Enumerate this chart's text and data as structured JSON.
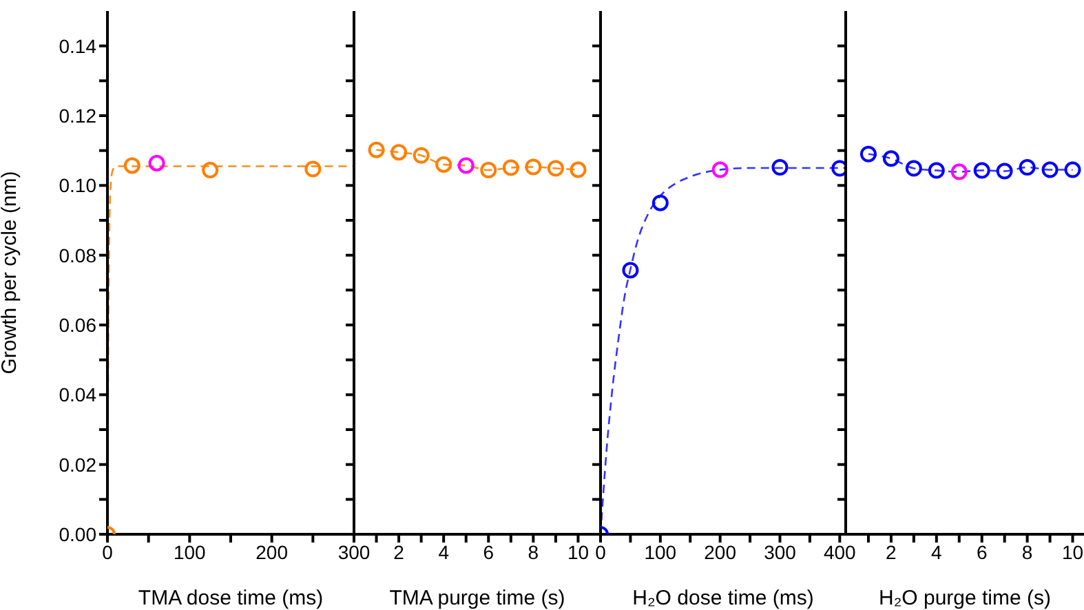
{
  "chart_data": [
    {
      "type": "scatter",
      "xlabel": "TMA dose time (ms)",
      "ylabel": "Growth per cycle (nm)",
      "xlim": [
        0,
        300
      ],
      "xticks": [
        0,
        {
          "value": 50,
          "label": null
        },
        100,
        {
          "value": 150,
          "label": null
        },
        200,
        {
          "value": 250,
          "label": null
        },
        300
      ],
      "ylim": [
        0,
        0.15
      ],
      "yticks": [
        {
          "value": 0,
          "label": "0.00"
        },
        {
          "value": 0.01,
          "label": null
        },
        {
          "value": 0.02,
          "label": "0.02"
        },
        {
          "value": 0.03,
          "label": null
        },
        {
          "value": 0.04,
          "label": "0.04"
        },
        {
          "value": 0.05,
          "label": null
        },
        {
          "value": 0.06,
          "label": "0.06"
        },
        {
          "value": 0.07,
          "label": null
        },
        {
          "value": 0.08,
          "label": "0.08"
        },
        {
          "value": 0.09,
          "label": null
        },
        {
          "value": 0.1,
          "label": "0.10"
        },
        {
          "value": 0.11,
          "label": null
        },
        {
          "value": 0.12,
          "label": "0.12"
        },
        {
          "value": 0.13,
          "label": null
        },
        {
          "value": 0.14,
          "label": "0.14"
        }
      ],
      "grid": false,
      "series": [
        {
          "type": "line",
          "color": "#ff8c1a",
          "line_style": "dashed",
          "marker": "none",
          "x": [
            0,
            1,
            2,
            3,
            4,
            6,
            10,
            300
          ],
          "values": [
            0,
            0.05,
            0.08,
            0.095,
            0.1,
            0.104,
            0.1055,
            0.1055
          ]
        },
        {
          "type": "scatter",
          "color": "#ff7f00",
          "marker": "circle",
          "x": [
            0,
            30,
            60,
            125,
            250
          ],
          "values": [
            0,
            0.1057,
            0.1064,
            0.1044,
            0.1047
          ],
          "colors": [
            "#ff7f00",
            "#ff7f00",
            "#ff00ff",
            "#ff7f00",
            "#ff7f00"
          ]
        }
      ]
    },
    {
      "type": "scatter",
      "xlabel": "TMA purge time (s)",
      "xlim": [
        0,
        11
      ],
      "xticks": [
        {
          "value": 1,
          "label": null
        },
        2,
        {
          "value": 3,
          "label": null
        },
        4,
        {
          "value": 5,
          "label": null
        },
        6,
        {
          "value": 7,
          "label": null
        },
        8,
        {
          "value": 9,
          "label": null
        },
        10
      ],
      "ylim": [
        0,
        0.15
      ],
      "yticks": [
        {
          "value": 0,
          "label": null
        },
        {
          "value": 0.01,
          "label": null
        },
        {
          "value": 0.02,
          "label": null
        },
        {
          "value": 0.03,
          "label": null
        },
        {
          "value": 0.04,
          "label": null
        },
        {
          "value": 0.05,
          "label": null
        },
        {
          "value": 0.06,
          "label": null
        },
        {
          "value": 0.07,
          "label": null
        },
        {
          "value": 0.08,
          "label": null
        },
        {
          "value": 0.09,
          "label": null
        },
        {
          "value": 0.1,
          "label": null
        },
        {
          "value": 0.11,
          "label": null
        },
        {
          "value": 0.12,
          "label": null
        },
        {
          "value": 0.13,
          "label": null
        },
        {
          "value": 0.14,
          "label": null
        }
      ],
      "tick_labels": "x",
      "grid": false,
      "series": [
        {
          "type": "line",
          "color": "#ff8c1a",
          "line_style": "dashed",
          "marker": "none",
          "x": [
            1,
            2,
            3,
            4,
            5,
            6,
            7,
            8,
            9,
            10
          ],
          "values": [
            0.1102,
            0.1095,
            0.1086,
            0.106,
            0.1057,
            0.1044,
            0.1051,
            0.1053,
            0.1049,
            0.1045
          ]
        },
        {
          "type": "scatter",
          "color": "#ff7f00",
          "marker": "circle",
          "x": [
            1,
            2,
            3,
            4,
            5,
            6,
            7,
            8,
            9,
            10
          ],
          "values": [
            0.1102,
            0.1095,
            0.1086,
            0.106,
            0.1057,
            0.1044,
            0.1051,
            0.1053,
            0.1049,
            0.1045
          ],
          "colors": [
            "#ff7f00",
            "#ff7f00",
            "#ff7f00",
            "#ff7f00",
            "#ff00ff",
            "#ff7f00",
            "#ff7f00",
            "#ff7f00",
            "#ff7f00",
            "#ff7f00"
          ]
        }
      ]
    },
    {
      "type": "scatter",
      "xlabel": "H₂O dose time (ms)",
      "xlim": [
        0,
        410
      ],
      "xticks": [
        0,
        {
          "value": 50,
          "label": null
        },
        100,
        {
          "value": 150,
          "label": null
        },
        200,
        {
          "value": 250,
          "label": null
        },
        300,
        {
          "value": 350,
          "label": null
        },
        400
      ],
      "ylim": [
        0,
        0.15
      ],
      "yticks": [
        {
          "value": 0,
          "label": null
        },
        {
          "value": 0.01,
          "label": null
        },
        {
          "value": 0.02,
          "label": null
        },
        {
          "value": 0.03,
          "label": null
        },
        {
          "value": 0.04,
          "label": null
        },
        {
          "value": 0.05,
          "label": null
        },
        {
          "value": 0.06,
          "label": null
        },
        {
          "value": 0.07,
          "label": null
        },
        {
          "value": 0.08,
          "label": null
        },
        {
          "value": 0.09,
          "label": null
        },
        {
          "value": 0.1,
          "label": null
        },
        {
          "value": 0.11,
          "label": null
        },
        {
          "value": 0.12,
          "label": null
        },
        {
          "value": 0.13,
          "label": null
        },
        {
          "value": 0.14,
          "label": null
        }
      ],
      "tick_labels": "x",
      "grid": false,
      "series": [
        {
          "type": "line",
          "color": "#3333ff",
          "line_style": "dashed",
          "marker": "none",
          "x": [
            0,
            10,
            20,
            30,
            40,
            50,
            60,
            80,
            100,
            125,
            150,
            200,
            250,
            300,
            410
          ],
          "values": [
            0,
            0.024,
            0.042,
            0.056,
            0.068,
            0.076,
            0.083,
            0.092,
            0.097,
            0.1005,
            0.1025,
            0.1045,
            0.105,
            0.105,
            0.105
          ]
        },
        {
          "type": "scatter",
          "color": "#0000ff",
          "marker": "circle",
          "x": [
            0,
            50,
            100,
            200,
            300,
            400
          ],
          "values": [
            0,
            0.0757,
            0.095,
            0.1045,
            0.1052,
            0.1049
          ],
          "colors": [
            "#0000ff",
            "#0000ff",
            "#0000ff",
            "#ff00ff",
            "#0000ff",
            "#0000ff"
          ]
        }
      ]
    },
    {
      "type": "scatter",
      "xlabel": "H₂O purge time (s)",
      "xlim": [
        0,
        10.5
      ],
      "xticks": [
        {
          "value": 1,
          "label": null
        },
        2,
        {
          "value": 3,
          "label": null
        },
        4,
        {
          "value": 5,
          "label": null
        },
        6,
        {
          "value": 7,
          "label": null
        },
        8,
        {
          "value": 9,
          "label": null
        },
        10
      ],
      "ylim": [
        0,
        0.15
      ],
      "yticks": [
        {
          "value": 0,
          "label": null
        },
        {
          "value": 0.01,
          "label": null
        },
        {
          "value": 0.02,
          "label": null
        },
        {
          "value": 0.03,
          "label": null
        },
        {
          "value": 0.04,
          "label": null
        },
        {
          "value": 0.05,
          "label": null
        },
        {
          "value": 0.06,
          "label": null
        },
        {
          "value": 0.07,
          "label": null
        },
        {
          "value": 0.08,
          "label": null
        },
        {
          "value": 0.09,
          "label": null
        },
        {
          "value": 0.1,
          "label": null
        },
        {
          "value": 0.11,
          "label": null
        },
        {
          "value": 0.12,
          "label": null
        },
        {
          "value": 0.13,
          "label": null
        },
        {
          "value": 0.14,
          "label": null
        }
      ],
      "tick_labels": "x",
      "grid": false,
      "series": [
        {
          "type": "line",
          "color": "#3333ff",
          "line_style": "dashed",
          "marker": "none",
          "x": [
            1,
            2,
            3,
            4,
            5,
            6,
            7,
            8,
            9,
            10
          ],
          "values": [
            0.109,
            0.1077,
            0.1049,
            0.1043,
            0.1039,
            0.1043,
            0.1041,
            0.1052,
            0.1045,
            0.1045
          ]
        },
        {
          "type": "scatter",
          "color": "#0000ff",
          "marker": "circle",
          "x": [
            1,
            2,
            3,
            4,
            5,
            6,
            7,
            8,
            9,
            10
          ],
          "values": [
            0.109,
            0.1077,
            0.1049,
            0.1043,
            0.1039,
            0.1043,
            0.1041,
            0.1052,
            0.1045,
            0.1045
          ],
          "colors": [
            "#0000ff",
            "#0000ff",
            "#0000ff",
            "#0000ff",
            "#ff00ff",
            "#0000ff",
            "#0000ff",
            "#0000ff",
            "#0000ff",
            "#0000ff"
          ]
        }
      ]
    }
  ]
}
